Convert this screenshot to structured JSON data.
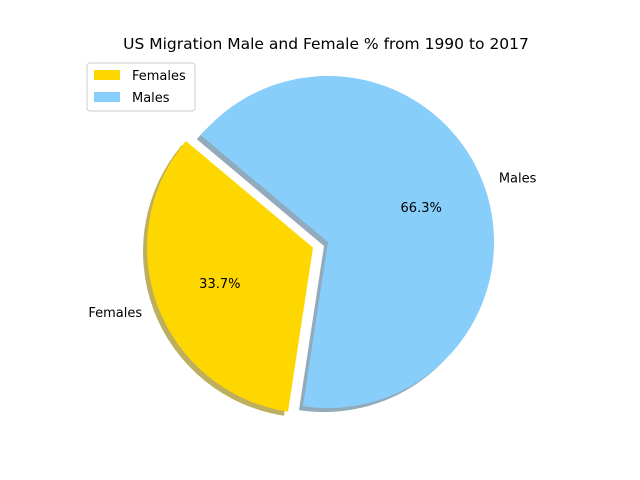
{
  "chart_data": {
    "type": "pie",
    "title": "US Migration Male and Female % from 1990 to 2017",
    "slices": [
      {
        "label": "Females",
        "value": 33.7,
        "pct_label": "33.7%",
        "color": "#FFD700",
        "exploded": true
      },
      {
        "label": "Males",
        "value": 66.3,
        "pct_label": "66.3%",
        "color": "#87CEFA",
        "exploded": false
      }
    ],
    "legend": {
      "placement": "top-left",
      "entries": [
        "Females",
        "Males"
      ]
    },
    "shadow": true
  }
}
